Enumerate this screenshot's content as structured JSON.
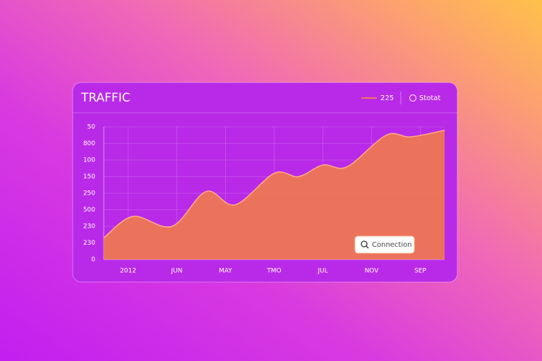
{
  "chart_data": {
    "type": "area",
    "title": "TRAFFIC",
    "x": [
      0,
      0.6,
      1.4,
      2.1,
      2.7,
      3.5,
      4.0,
      4.5,
      5.0,
      5.8,
      6.3,
      7.0
    ],
    "series": [
      {
        "name": "225",
        "color": "#f0794e",
        "values": [
          1.3,
          2.6,
          2.0,
          4.1,
          3.3,
          5.2,
          5.0,
          5.7,
          5.6,
          7.5,
          7.4,
          7.8
        ]
      }
    ],
    "xlim": [
      0,
      7
    ],
    "xticks": [
      {
        "value": 0.5,
        "label": "2012"
      },
      {
        "value": 1.5,
        "label": "JUN"
      },
      {
        "value": 2.5,
        "label": "MAY"
      },
      {
        "value": 3.5,
        "label": "TMO"
      },
      {
        "value": 4.5,
        "label": "JUL"
      },
      {
        "value": 5.5,
        "label": "NOV"
      },
      {
        "value": 6.5,
        "label": "SEP"
      }
    ],
    "ylim": [
      0,
      8
    ],
    "yticks": [
      {
        "value": 0,
        "label": "0"
      },
      {
        "value": 1,
        "label": "230"
      },
      {
        "value": 2,
        "label": "230"
      },
      {
        "value": 3,
        "label": "500"
      },
      {
        "value": 4,
        "label": "250"
      },
      {
        "value": 5,
        "label": "150"
      },
      {
        "value": 6,
        "label": "100"
      },
      {
        "value": 7,
        "label": "800"
      },
      {
        "value": 8,
        "label": "50"
      }
    ],
    "grid": true
  },
  "controls": {
    "status": "Stotat",
    "button": "Connection"
  }
}
